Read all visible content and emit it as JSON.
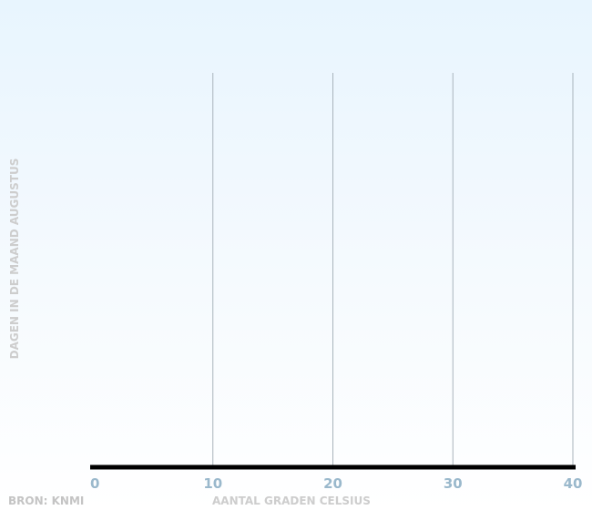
{
  "chart_data": {
    "type": "bar",
    "orientation": "horizontal",
    "title": "",
    "xlabel": "AANTAL GRADEN CELSIUS",
    "ylabel": "DAGEN IN DE MAAND AUGUSTUS",
    "xlim": [
      0,
      40
    ],
    "x_ticks": [
      0,
      10,
      20,
      30,
      40
    ],
    "x_tick_labels": [
      "0",
      "10",
      "20",
      "30",
      "40"
    ],
    "categories": [],
    "values": [],
    "grid": "vertical",
    "colors": {
      "tick_label": "#9ab8cc",
      "gridline": "#a9b4bc",
      "baseline": "#000000",
      "axis_title": "#cdcdcd"
    }
  },
  "source": "BRON: KNMI"
}
